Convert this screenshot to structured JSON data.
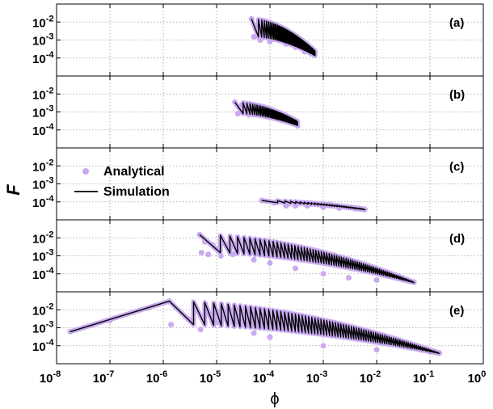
{
  "chart_data": {
    "type": "line",
    "xlabel": "ϕ",
    "ylabel": "F",
    "x_scale": "log",
    "y_scale": "log",
    "xlim": [
      1e-08,
      1
    ],
    "ylim": [
      1e-05,
      0.1
    ],
    "grid": true,
    "x_ticks": [
      {
        "value": 1e-08,
        "base": "10",
        "exp": "-8"
      },
      {
        "value": 1e-07,
        "base": "10",
        "exp": "-7"
      },
      {
        "value": 1e-06,
        "base": "10",
        "exp": "-6"
      },
      {
        "value": 1e-05,
        "base": "10",
        "exp": "-5"
      },
      {
        "value": 0.0001,
        "base": "10",
        "exp": "-4"
      },
      {
        "value": 0.001,
        "base": "10",
        "exp": "-3"
      },
      {
        "value": 0.01,
        "base": "10",
        "exp": "-2"
      },
      {
        "value": 0.1,
        "base": "10",
        "exp": "-1"
      },
      {
        "value": 1,
        "base": "10",
        "exp": "0"
      }
    ],
    "y_ticks": [
      {
        "value": 0.01,
        "base": "10",
        "exp": "-2"
      },
      {
        "value": 0.001,
        "base": "10",
        "exp": "-3"
      },
      {
        "value": 0.0001,
        "base": "10",
        "exp": "-4"
      }
    ],
    "legend": {
      "panel": 2,
      "entries": [
        {
          "name": "Analytical",
          "style": "marker",
          "color": "#c9aaf0"
        },
        {
          "name": "Simulation",
          "style": "line",
          "color": "#000000"
        }
      ]
    },
    "colors": {
      "analytical": "#c9aaf0",
      "simulation": "#000000"
    },
    "panels": [
      {
        "label": "(a)",
        "sawtooth": {
          "x_start": 4.5e-05,
          "x_end": 0.0007,
          "y_top_start": 0.015,
          "y_top_end": 0.00025,
          "y_bot_start": 0.0015,
          "y_bot_end": 0.00013,
          "teeth": 55
        },
        "series": [
          {
            "name": "Analytical",
            "x": [
              4.5e-05,
              5e-05,
              5.7e-05,
              6.6e-05,
              7.9e-05,
              0.0001,
              0.00014,
              0.0002,
              0.0003,
              0.00045,
              0.0006,
              0.0007
            ],
            "y": [
              0.015,
              0.0015,
              0.005,
              0.001,
              0.004,
              0.0008,
              0.0015,
              0.0006,
              0.0004,
              0.00022,
              0.00017,
              0.00019
            ]
          }
        ]
      },
      {
        "label": "(b)",
        "sawtooth": {
          "x_start": 2.2e-05,
          "x_end": 0.00033,
          "y_top_start": 0.0035,
          "y_top_end": 0.0003,
          "y_bot_start": 0.0008,
          "y_bot_end": 0.00017,
          "teeth": 40
        },
        "series": [
          {
            "name": "Analytical",
            "x": [
              2.2e-05,
              2.5e-05,
              3e-05,
              4e-05,
              6e-05,
              0.0001,
              0.0002,
              0.00033
            ],
            "y": [
              0.0035,
              0.0008,
              0.0025,
              0.0007,
              0.0015,
              0.0005,
              0.0003,
              0.00017
            ]
          }
        ]
      },
      {
        "label": "(c)",
        "sawtooth": {
          "x_start": 7e-05,
          "x_end": 0.006,
          "y_top_start": 0.00012,
          "y_top_end": 4e-05,
          "y_bot_start": 9e-05,
          "y_bot_end": 3.5e-05,
          "teeth": 30
        },
        "series": [
          {
            "name": "Analytical",
            "x": [
              7e-05,
              0.00012,
              0.0002,
              0.00023,
              0.0003,
              0.0005,
              0.001,
              0.002,
              0.004,
              0.006
            ],
            "y": [
              0.00012,
              9e-05,
              6e-05,
              8e-05,
              6e-05,
              6e-05,
              5e-05,
              4.5e-05,
              4.2e-05,
              3.8e-05
            ]
          }
        ]
      },
      {
        "label": "(d)",
        "sawtooth": {
          "x_start": 4.8e-06,
          "x_end": 0.05,
          "y_top_start": 0.015,
          "y_top_end": 3.5e-05,
          "y_bot_start": 0.0015,
          "y_bot_end": 3e-05,
          "teeth": 70
        },
        "series": [
          {
            "name": "Analytical",
            "x": [
              4.8e-06,
              5.2e-06,
              6e-06,
              7e-06,
              8.5e-06,
              1.2e-05,
              2e-05,
              5e-05,
              0.0001,
              0.0003,
              0.001,
              0.003,
              0.01,
              0.05
            ],
            "y": [
              0.015,
              0.0015,
              0.006,
              0.0012,
              0.004,
              0.001,
              0.0012,
              0.0006,
              0.0004,
              0.0002,
              0.0001,
              6e-05,
              4.5e-05,
              3.5e-05
            ]
          }
        ]
      },
      {
        "label": "(e)",
        "sawtooth": {
          "x_start": 1.3e-06,
          "x_end": 0.15,
          "y_top_start": 0.03,
          "y_top_end": 4e-05,
          "y_bot_start": 0.0015,
          "y_bot_end": 3.5e-05,
          "teeth": 80
        },
        "ramp": {
          "x_start": 1.8e-08,
          "y_start": 0.0006,
          "x_end": 1.3e-06,
          "y_end": 0.03
        },
        "series": [
          {
            "name": "Analytical",
            "x": [
              1.8e-08,
              1e-07,
              5e-07,
              1.3e-06,
              1.4e-06,
              3e-06,
              5e-06,
              1e-05,
              5e-05,
              0.0001,
              0.001,
              0.01,
              0.1,
              0.15
            ],
            "y": [
              0.0006,
              0.0025,
              0.012,
              0.03,
              0.0015,
              0.003,
              0.0008,
              0.002,
              0.0005,
              0.0003,
              0.0001,
              6e-05,
              4.5e-05,
              4e-05
            ]
          }
        ]
      }
    ]
  }
}
